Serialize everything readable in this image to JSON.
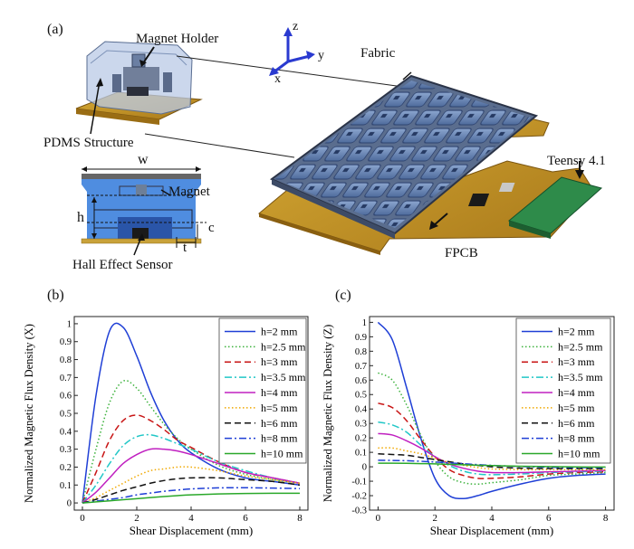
{
  "figure": {
    "panel_a": {
      "label": "(a)",
      "callouts": {
        "magnet_holder": "Magnet Holder",
        "pdms_structure": "PDMS Structure",
        "magnet": "Magnet",
        "hall_sensor": "Hall Effect Sensor",
        "fabric": "Fabric",
        "teensy": "Teensy 4.1",
        "fpcb": "FPCB"
      },
      "dimensions": {
        "w": "w",
        "h": "h",
        "c": "c",
        "t": "t"
      },
      "axes": {
        "z": "z",
        "y": "y",
        "x": "x"
      }
    },
    "panel_b": {
      "label": "(b)"
    },
    "panel_c": {
      "label": "(c)"
    }
  },
  "chart_data": [
    {
      "type": "line",
      "panel": "(b)",
      "xlabel": "Shear Displacement (mm)",
      "ylabel": "Normalized Magnetic Flux Density (X)",
      "xlim": [
        -0.3,
        8.3
      ],
      "ylim": [
        -0.04,
        1.04
      ],
      "x_ticks": [
        0,
        2,
        4,
        6,
        8
      ],
      "y_ticks": [
        0,
        0.1,
        0.2,
        0.3,
        0.4,
        0.5,
        0.6,
        0.7,
        0.8,
        0.9,
        1
      ],
      "legend_position": "top-right",
      "x": [
        0,
        0.5,
        1,
        1.5,
        2,
        2.5,
        3,
        3.5,
        4,
        5,
        6,
        7,
        8
      ],
      "series": [
        {
          "name": "h=2 mm",
          "color": "#1f3fd6",
          "dash": "solid",
          "values": [
            0,
            0.6,
            0.96,
            0.98,
            0.82,
            0.62,
            0.46,
            0.35,
            0.28,
            0.19,
            0.14,
            0.12,
            0.1
          ]
        },
        {
          "name": "h=2.5 mm",
          "color": "#3cb23c",
          "dash": "dotted",
          "values": [
            0,
            0.3,
            0.56,
            0.68,
            0.64,
            0.54,
            0.44,
            0.36,
            0.3,
            0.21,
            0.16,
            0.13,
            0.11
          ]
        },
        {
          "name": "h=3 mm",
          "color": "#c81414",
          "dash": "dashed",
          "values": [
            0,
            0.17,
            0.35,
            0.46,
            0.49,
            0.46,
            0.41,
            0.35,
            0.31,
            0.23,
            0.17,
            0.14,
            0.11
          ]
        },
        {
          "name": "h=3.5 mm",
          "color": "#22c7c7",
          "dash": "dashdot",
          "values": [
            0,
            0.1,
            0.22,
            0.32,
            0.37,
            0.38,
            0.36,
            0.33,
            0.3,
            0.23,
            0.18,
            0.14,
            0.11
          ]
        },
        {
          "name": "h=4 mm",
          "color": "#c020c0",
          "dash": "solid",
          "values": [
            0,
            0.06,
            0.14,
            0.22,
            0.27,
            0.3,
            0.3,
            0.29,
            0.27,
            0.22,
            0.17,
            0.14,
            0.11
          ]
        },
        {
          "name": "h=5 mm",
          "color": "#f0a800",
          "dash": "dotted",
          "values": [
            0,
            0.03,
            0.07,
            0.11,
            0.15,
            0.18,
            0.19,
            0.2,
            0.2,
            0.18,
            0.15,
            0.13,
            0.11
          ]
        },
        {
          "name": "h=6 mm",
          "color": "#111111",
          "dash": "dashed",
          "values": [
            0,
            0.02,
            0.045,
            0.07,
            0.09,
            0.11,
            0.125,
            0.135,
            0.14,
            0.14,
            0.13,
            0.12,
            0.1
          ]
        },
        {
          "name": "h=8 mm",
          "color": "#1f3fd6",
          "dash": "dashdot",
          "values": [
            0,
            0.01,
            0.02,
            0.03,
            0.045,
            0.055,
            0.065,
            0.072,
            0.078,
            0.084,
            0.085,
            0.083,
            0.08
          ]
        },
        {
          "name": "h=10 mm",
          "color": "#2aa82a",
          "dash": "solid",
          "values": [
            0,
            0.006,
            0.012,
            0.018,
            0.024,
            0.03,
            0.036,
            0.041,
            0.045,
            0.05,
            0.053,
            0.054,
            0.054
          ]
        }
      ]
    },
    {
      "type": "line",
      "panel": "(c)",
      "xlabel": "Shear Displacement (mm)",
      "ylabel": "Normalized Magnetic Flux Density (Z)",
      "xlim": [
        -0.3,
        8.3
      ],
      "ylim": [
        -0.3,
        1.04
      ],
      "x_ticks": [
        0,
        2,
        4,
        6,
        8
      ],
      "y_ticks": [
        -0.3,
        -0.2,
        -0.1,
        0,
        0.1,
        0.2,
        0.3,
        0.4,
        0.5,
        0.6,
        0.7,
        0.8,
        0.9,
        1
      ],
      "legend_position": "top-right",
      "x": [
        0,
        0.5,
        1,
        1.5,
        2,
        2.5,
        3,
        3.5,
        4,
        5,
        6,
        7,
        8
      ],
      "series": [
        {
          "name": "h=2 mm",
          "color": "#1f3fd6",
          "dash": "solid",
          "values": [
            1,
            0.88,
            0.55,
            0.2,
            -0.08,
            -0.2,
            -0.22,
            -0.2,
            -0.17,
            -0.12,
            -0.08,
            -0.06,
            -0.05
          ]
        },
        {
          "name": "h=2.5 mm",
          "color": "#3cb23c",
          "dash": "dotted",
          "values": [
            0.65,
            0.6,
            0.43,
            0.22,
            0.04,
            -0.07,
            -0.11,
            -0.12,
            -0.11,
            -0.09,
            -0.06,
            -0.05,
            -0.04
          ]
        },
        {
          "name": "h=3 mm",
          "color": "#c81414",
          "dash": "dashed",
          "values": [
            0.44,
            0.41,
            0.32,
            0.19,
            0.07,
            -0.02,
            -0.06,
            -0.08,
            -0.08,
            -0.07,
            -0.05,
            -0.04,
            -0.035
          ]
        },
        {
          "name": "h=3.5 mm",
          "color": "#22c7c7",
          "dash": "dashdot",
          "values": [
            0.31,
            0.29,
            0.24,
            0.15,
            0.07,
            0.01,
            -0.03,
            -0.05,
            -0.055,
            -0.05,
            -0.04,
            -0.035,
            -0.03
          ]
        },
        {
          "name": "h=4 mm",
          "color": "#c020c0",
          "dash": "solid",
          "values": [
            0.23,
            0.22,
            0.18,
            0.13,
            0.07,
            0.02,
            -0.01,
            -0.03,
            -0.04,
            -0.04,
            -0.035,
            -0.03,
            -0.025
          ]
        },
        {
          "name": "h=5 mm",
          "color": "#f0a800",
          "dash": "dotted",
          "values": [
            0.13,
            0.13,
            0.11,
            0.09,
            0.06,
            0.03,
            0.01,
            -0.005,
            -0.015,
            -0.02,
            -0.02,
            -0.02,
            -0.02
          ]
        },
        {
          "name": "h=6 mm",
          "color": "#111111",
          "dash": "dashed",
          "values": [
            0.09,
            0.085,
            0.08,
            0.065,
            0.05,
            0.035,
            0.02,
            0.01,
            0.0,
            -0.01,
            -0.012,
            -0.013,
            -0.013
          ]
        },
        {
          "name": "h=8 mm",
          "color": "#1f3fd6",
          "dash": "dashdot",
          "values": [
            0.045,
            0.044,
            0.042,
            0.038,
            0.033,
            0.027,
            0.021,
            0.015,
            0.01,
            0.002,
            -0.003,
            -0.005,
            -0.006
          ]
        },
        {
          "name": "h=10 mm",
          "color": "#2aa82a",
          "dash": "solid",
          "values": [
            0.025,
            0.025,
            0.024,
            0.022,
            0.02,
            0.017,
            0.014,
            0.011,
            0.008,
            0.004,
            0.001,
            -0.001,
            -0.002
          ]
        }
      ]
    }
  ]
}
